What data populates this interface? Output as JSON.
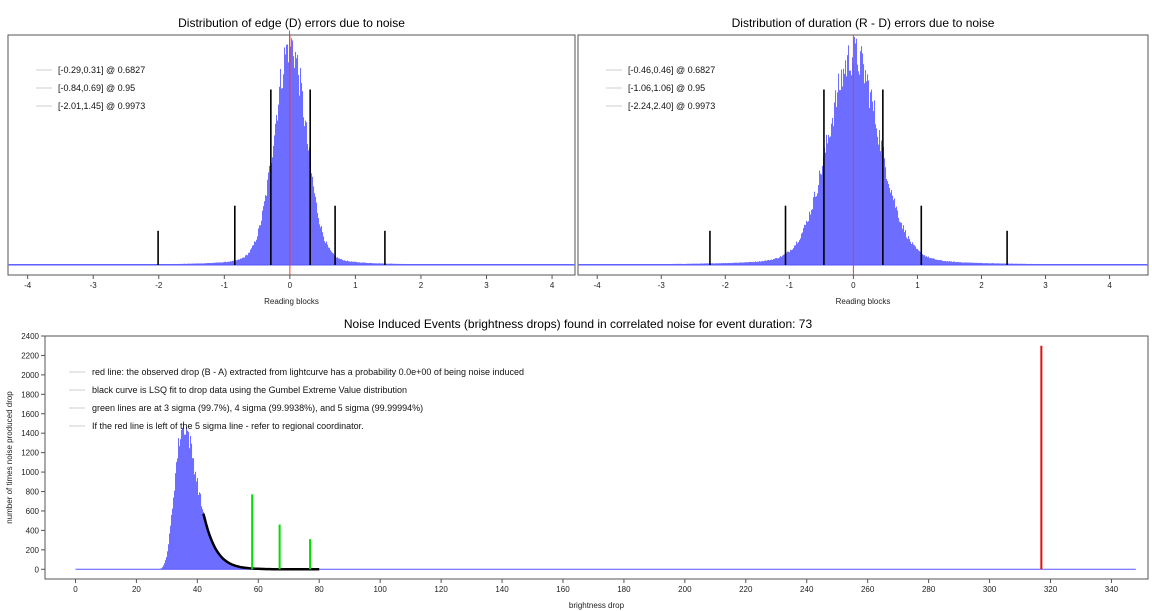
{
  "chart_data": [
    {
      "id": "edge",
      "type": "bar",
      "title": "Distribution of edge (D) errors due to noise",
      "xlabel": "Reading blocks",
      "ylabel": "",
      "xlim": [
        -4.3,
        4.35
      ],
      "xticks": [
        -4,
        -3,
        -2,
        -1,
        0,
        1,
        2,
        3,
        4
      ],
      "dist": {
        "center": 0.0,
        "sigma": 0.24,
        "peak": 0.97
      },
      "red_line": 0,
      "legend": [
        {
          "label": "[-0.29,0.31] @ 0.6827"
        },
        {
          "label": "[-0.84,0.69] @ 0.95"
        },
        {
          "label": "[-2.01,1.45] @ 0.9973"
        }
      ],
      "interval_lines": [
        {
          "x": -0.29,
          "h": 0.77
        },
        {
          "x": 0.31,
          "h": 0.77
        },
        {
          "x": -0.84,
          "h": 0.26
        },
        {
          "x": 0.69,
          "h": 0.26
        },
        {
          "x": -2.01,
          "h": 0.15
        },
        {
          "x": 1.45,
          "h": 0.15
        }
      ],
      "colors": {
        "bars": "#5555ff",
        "red": "#ff3333",
        "interval": "#000000"
      }
    },
    {
      "id": "duration",
      "type": "bar",
      "title": "Distribution of duration (R - D) errors due to noise",
      "xlabel": "Reading blocks",
      "ylabel": "",
      "xlim": [
        -4.3,
        4.6
      ],
      "xticks": [
        -4,
        -3,
        -2,
        -1,
        0,
        1,
        2,
        3,
        4
      ],
      "dist": {
        "center": 0.0,
        "sigma": 0.4,
        "peak": 0.92
      },
      "red_line": 0,
      "legend": [
        {
          "label": "[-0.46,0.46] @ 0.6827"
        },
        {
          "label": "[-1.06,1.06] @ 0.95"
        },
        {
          "label": "[-2.24,2.40] @ 0.9973"
        }
      ],
      "interval_lines": [
        {
          "x": -0.46,
          "h": 0.77
        },
        {
          "x": 0.46,
          "h": 0.77
        },
        {
          "x": -1.06,
          "h": 0.26
        },
        {
          "x": 1.06,
          "h": 0.26
        },
        {
          "x": -2.24,
          "h": 0.15
        },
        {
          "x": 2.4,
          "h": 0.15
        }
      ],
      "colors": {
        "bars": "#5555ff",
        "red": "#ff3333",
        "interval": "#000000"
      }
    },
    {
      "id": "drops",
      "type": "bar",
      "title": "Noise Induced Events (brightness drops) found in correlated noise for event duration: 73",
      "xlabel": "brightness drop",
      "ylabel": "number of times noise produced drop",
      "xlim": [
        -10,
        352
      ],
      "ylim": [
        -100,
        2400
      ],
      "xticks": [
        0,
        20,
        40,
        60,
        80,
        100,
        120,
        140,
        160,
        180,
        200,
        220,
        240,
        260,
        280,
        300,
        320,
        340
      ],
      "yticks": [
        0,
        200,
        400,
        600,
        800,
        1000,
        1200,
        1400,
        1600,
        1800,
        2000,
        2200,
        2400
      ],
      "dist": {
        "mode": 35.5,
        "beta": 3.6,
        "peak": 1480,
        "xmin": 20,
        "xmax": 80
      },
      "legend": [
        {
          "label": "red line: the observed drop (B - A) extracted from lightcurve has a probability 0.0e+00 of being noise induced"
        },
        {
          "label": "black curve is LSQ fit to drop data using the Gumbel Extreme Value distribution"
        },
        {
          "label": "green lines are at 3 sigma (99.7%), 4 sigma (99.9938%), and 5 sigma (99.99994%)"
        },
        {
          "label": "If the red line is left of the 5 sigma line - refer to regional coordinator."
        }
      ],
      "fit_range": [
        42,
        80
      ],
      "sigma_lines": [
        {
          "label": "3 sigma",
          "x": 58,
          "value": 770
        },
        {
          "label": "4 sigma",
          "x": 67,
          "value": 460
        },
        {
          "label": "5 sigma",
          "x": 77,
          "value": 310
        }
      ],
      "observed_drop": {
        "x": 317,
        "value": 2300
      },
      "colors": {
        "bars": "#5555ff",
        "red": "#dd1111",
        "green": "#00dd00",
        "fit": "#000000"
      }
    }
  ]
}
